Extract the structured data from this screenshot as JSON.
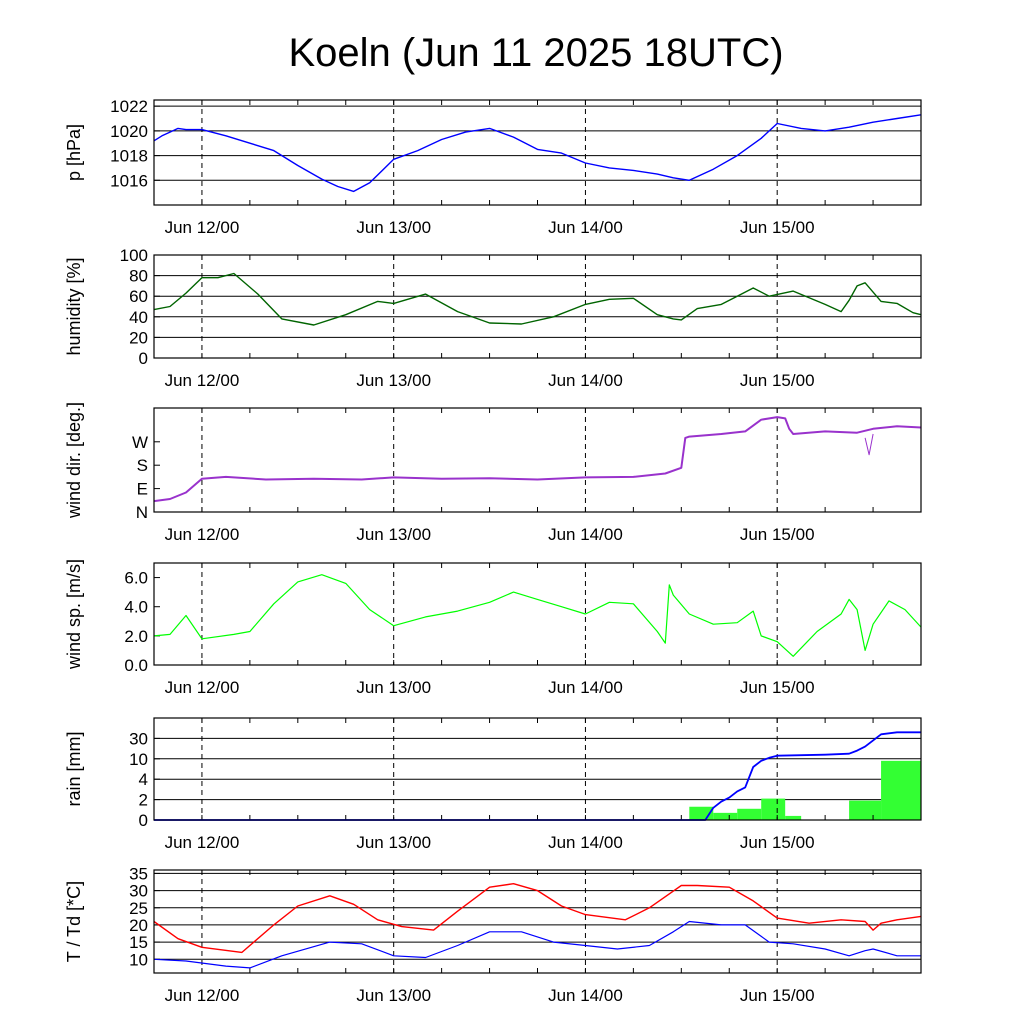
{
  "title": "Koeln (Jun 11 2025 18UTC)",
  "x_axis": {
    "start": "2025-06-11T18:00",
    "end": "2025-06-15T18:00",
    "ticks": [
      {
        "time": "2025-06-12T00:00",
        "label": "Jun 12/00"
      },
      {
        "time": "2025-06-13T00:00",
        "label": "Jun 13/00"
      },
      {
        "time": "2025-06-14T00:00",
        "label": "Jun 14/00"
      },
      {
        "time": "2025-06-15T00:00",
        "label": "Jun 15/00"
      }
    ]
  },
  "chart_data": [
    {
      "type": "line",
      "ylabel": "p [hPa]",
      "ylim": [
        1014,
        1022.5
      ],
      "yticks": [
        {
          "v": 1016,
          "label": "1016"
        },
        {
          "v": 1018,
          "label": "1018"
        },
        {
          "v": 1020,
          "label": "1020"
        },
        {
          "v": 1022,
          "label": "1022"
        }
      ],
      "grid": [
        1016,
        1018,
        1020,
        1022
      ],
      "series": [
        {
          "color": "#0000ff",
          "width": 1.4,
          "x": [
            "2025-06-11T18:00",
            "2025-06-11T19:00",
            "2025-06-11T20:00",
            "2025-06-11T21:00",
            "2025-06-11T22:00",
            "2025-06-12T00:00",
            "2025-06-12T03:00",
            "2025-06-12T06:00",
            "2025-06-12T09:00",
            "2025-06-12T12:00",
            "2025-06-12T15:00",
            "2025-06-12T17:00",
            "2025-06-12T19:00",
            "2025-06-12T21:00",
            "2025-06-13T00:00",
            "2025-06-13T03:00",
            "2025-06-13T06:00",
            "2025-06-13T09:00",
            "2025-06-13T12:00",
            "2025-06-13T15:00",
            "2025-06-13T18:00",
            "2025-06-13T21:00",
            "2025-06-14T00:00",
            "2025-06-14T03:00",
            "2025-06-14T06:00",
            "2025-06-14T09:00",
            "2025-06-14T11:00",
            "2025-06-14T13:00",
            "2025-06-14T16:00",
            "2025-06-14T19:00",
            "2025-06-14T22:00",
            "2025-06-15T00:00",
            "2025-06-15T03:00",
            "2025-06-15T06:00",
            "2025-06-15T09:00",
            "2025-06-15T12:00",
            "2025-06-15T15:00",
            "2025-06-15T18:00"
          ],
          "values": [
            1019.2,
            1019.6,
            1019.9,
            1020.2,
            1020.1,
            1020.1,
            1019.6,
            1019.0,
            1018.4,
            1017.2,
            1016.1,
            1015.5,
            1015.1,
            1015.8,
            1017.7,
            1018.4,
            1019.3,
            1019.9,
            1020.2,
            1019.5,
            1018.5,
            1018.2,
            1017.4,
            1017.0,
            1016.8,
            1016.5,
            1016.2,
            1016.0,
            1016.9,
            1018.0,
            1019.4,
            1020.6,
            1020.2,
            1020.0,
            1020.3,
            1020.7,
            1021.0,
            1021.3
          ]
        }
      ]
    },
    {
      "type": "line",
      "ylabel": "humidity [%]",
      "ylim": [
        0,
        100
      ],
      "yticks": [
        {
          "v": 0,
          "label": "0"
        },
        {
          "v": 20,
          "label": "20"
        },
        {
          "v": 40,
          "label": "40"
        },
        {
          "v": 60,
          "label": "60"
        },
        {
          "v": 80,
          "label": "80"
        },
        {
          "v": 100,
          "label": "100"
        }
      ],
      "grid": [
        20,
        40,
        60,
        80
      ],
      "series": [
        {
          "color": "#006400",
          "width": 1.4,
          "x": [
            "2025-06-11T18:00",
            "2025-06-11T20:00",
            "2025-06-11T22:00",
            "2025-06-12T00:00",
            "2025-06-12T02:00",
            "2025-06-12T04:00",
            "2025-06-12T07:00",
            "2025-06-12T10:00",
            "2025-06-12T14:00",
            "2025-06-12T18:00",
            "2025-06-12T22:00",
            "2025-06-13T00:00",
            "2025-06-13T04:00",
            "2025-06-13T08:00",
            "2025-06-13T12:00",
            "2025-06-13T16:00",
            "2025-06-13T20:00",
            "2025-06-14T00:00",
            "2025-06-14T03:00",
            "2025-06-14T06:00",
            "2025-06-14T09:00",
            "2025-06-14T11:00",
            "2025-06-14T12:00",
            "2025-06-14T14:00",
            "2025-06-14T17:00",
            "2025-06-14T19:00",
            "2025-06-14T21:00",
            "2025-06-14T23:00",
            "2025-06-15T02:00",
            "2025-06-15T06:00",
            "2025-06-15T08:00",
            "2025-06-15T09:00",
            "2025-06-15T10:00",
            "2025-06-15T11:00",
            "2025-06-15T13:00",
            "2025-06-15T15:00",
            "2025-06-15T17:00",
            "2025-06-15T18:00"
          ],
          "values": [
            47,
            50,
            63,
            78,
            78,
            82,
            62,
            38,
            32,
            42,
            55,
            53,
            62,
            45,
            34,
            33,
            40,
            52,
            57,
            58,
            42,
            38,
            37,
            48,
            52,
            60,
            68,
            60,
            65,
            52,
            45,
            56,
            70,
            73,
            55,
            53,
            44,
            42
          ]
        }
      ]
    },
    {
      "type": "scatter",
      "ylabel": "wind dir. [deg.]",
      "ylim": [
        0,
        400
      ],
      "yticks": [
        {
          "v": 0,
          "label": "N"
        },
        {
          "v": 90,
          "label": "E"
        },
        {
          "v": 180,
          "label": "S"
        },
        {
          "v": 270,
          "label": "W"
        }
      ],
      "grid": [],
      "series": [
        {
          "color": "#9932cc",
          "width": 2.0,
          "x": [
            "2025-06-11T18:00",
            "2025-06-11T20:00",
            "2025-06-11T22:00",
            "2025-06-12T00:00",
            "2025-06-12T03:00",
            "2025-06-12T08:00",
            "2025-06-12T14:00",
            "2025-06-12T20:00",
            "2025-06-13T00:00",
            "2025-06-13T06:00",
            "2025-06-13T12:00",
            "2025-06-13T18:00",
            "2025-06-14T00:00",
            "2025-06-14T06:00",
            "2025-06-14T10:00",
            "2025-06-14T12:00",
            "2025-06-14T12:30",
            "2025-06-14T13:00",
            "2025-06-14T17:00",
            "2025-06-14T20:00",
            "2025-06-14T22:00",
            "2025-06-15T00:00",
            "2025-06-15T01:00",
            "2025-06-15T01:30",
            "2025-06-15T02:00",
            "2025-06-15T06:00",
            "2025-06-15T10:00",
            "2025-06-15T12:00",
            "2025-06-15T15:00",
            "2025-06-15T18:00"
          ],
          "values": [
            42,
            50,
            75,
            128,
            135,
            125,
            128,
            125,
            133,
            128,
            130,
            125,
            133,
            135,
            148,
            170,
            285,
            290,
            300,
            310,
            355,
            365,
            360,
            320,
            300,
            310,
            305,
            320,
            330,
            325
          ]
        },
        {
          "color": "#9932cc",
          "width": 1.0,
          "x": [
            "2025-06-15T11:00",
            "2025-06-15T11:30",
            "2025-06-15T12:00"
          ],
          "values": [
            285,
            220,
            300
          ]
        }
      ]
    },
    {
      "type": "line",
      "ylabel": "wind sp. [m/s]",
      "ylim": [
        0,
        7
      ],
      "yticks": [
        {
          "v": 0,
          "label": "0.0"
        },
        {
          "v": 2,
          "label": "2.0"
        },
        {
          "v": 4,
          "label": "4.0"
        },
        {
          "v": 6,
          "label": "6.0"
        }
      ],
      "grid": [],
      "series": [
        {
          "color": "#00ff00",
          "width": 1.2,
          "x": [
            "2025-06-11T18:00",
            "2025-06-11T20:00",
            "2025-06-11T22:00",
            "2025-06-12T00:00",
            "2025-06-12T04:00",
            "2025-06-12T06:00",
            "2025-06-12T09:00",
            "2025-06-12T12:00",
            "2025-06-12T15:00",
            "2025-06-12T18:00",
            "2025-06-12T21:00",
            "2025-06-13T00:00",
            "2025-06-13T04:00",
            "2025-06-13T08:00",
            "2025-06-13T12:00",
            "2025-06-13T15:00",
            "2025-06-13T18:00",
            "2025-06-13T21:00",
            "2025-06-14T00:00",
            "2025-06-14T03:00",
            "2025-06-14T06:00",
            "2025-06-14T09:00",
            "2025-06-14T10:00",
            "2025-06-14T10:30",
            "2025-06-14T11:00",
            "2025-06-14T13:00",
            "2025-06-14T16:00",
            "2025-06-14T19:00",
            "2025-06-14T21:00",
            "2025-06-14T22:00",
            "2025-06-15T00:00",
            "2025-06-15T02:00",
            "2025-06-15T05:00",
            "2025-06-15T08:00",
            "2025-06-15T09:00",
            "2025-06-15T10:00",
            "2025-06-15T11:00",
            "2025-06-15T12:00",
            "2025-06-15T14:00",
            "2025-06-15T16:00",
            "2025-06-15T18:00"
          ],
          "values": [
            2.0,
            2.1,
            3.4,
            1.8,
            2.1,
            2.3,
            4.2,
            5.7,
            6.2,
            5.6,
            3.8,
            2.7,
            3.3,
            3.7,
            4.3,
            5.0,
            4.5,
            4.0,
            3.5,
            4.3,
            4.2,
            2.3,
            1.5,
            5.5,
            4.8,
            3.5,
            2.8,
            2.9,
            3.7,
            2.0,
            1.6,
            0.6,
            2.3,
            3.5,
            4.5,
            3.8,
            1.0,
            2.8,
            4.4,
            3.8,
            2.6
          ]
        }
      ]
    },
    {
      "type": "bar",
      "ylabel": "rain [mm]",
      "ylim": [
        0,
        5
      ],
      "yticks": [
        {
          "v": 0,
          "label": "0"
        },
        {
          "v": 1,
          "label": "2"
        },
        {
          "v": 2,
          "label": "4"
        },
        {
          "v": 3,
          "label": "10"
        },
        {
          "v": 4,
          "label": "30"
        }
      ],
      "grid": [
        1,
        2,
        3,
        4
      ],
      "bars": {
        "color": "#33ff33",
        "segments": [
          {
            "start": "2025-06-14T13:00",
            "end": "2025-06-14T16:00",
            "value": 0.65
          },
          {
            "start": "2025-06-14T16:00",
            "end": "2025-06-14T19:00",
            "value": 0.35
          },
          {
            "start": "2025-06-14T19:00",
            "end": "2025-06-14T22:00",
            "value": 0.55
          },
          {
            "start": "2025-06-14T22:00",
            "end": "2025-06-15T01:00",
            "value": 1.05
          },
          {
            "start": "2025-06-15T01:00",
            "end": "2025-06-15T03:00",
            "value": 0.2
          },
          {
            "start": "2025-06-15T09:00",
            "end": "2025-06-15T13:00",
            "value": 0.95
          },
          {
            "start": "2025-06-15T13:00",
            "end": "2025-06-15T18:00",
            "value": 2.9
          }
        ]
      },
      "series": [
        {
          "color": "#0000ff",
          "width": 1.8,
          "x": [
            "2025-06-11T18:00",
            "2025-06-14T15:00",
            "2025-06-14T16:00",
            "2025-06-14T17:00",
            "2025-06-14T18:00",
            "2025-06-14T19:00",
            "2025-06-14T20:00",
            "2025-06-14T21:00",
            "2025-06-14T22:00",
            "2025-06-14T23:00",
            "2025-06-15T00:00",
            "2025-06-15T06:00",
            "2025-06-15T09:00",
            "2025-06-15T10:00",
            "2025-06-15T11:00",
            "2025-06-15T12:00",
            "2025-06-15T13:00",
            "2025-06-15T15:00",
            "2025-06-15T18:00"
          ],
          "values": [
            0,
            0,
            0.6,
            0.9,
            1.1,
            1.4,
            1.6,
            2.6,
            2.9,
            3.05,
            3.15,
            3.2,
            3.25,
            3.4,
            3.6,
            3.9,
            4.2,
            4.3,
            4.3
          ]
        }
      ]
    },
    {
      "type": "line",
      "ylabel": "T / Td [*C]",
      "ylim": [
        6,
        36
      ],
      "yticks": [
        {
          "v": 10,
          "label": "10"
        },
        {
          "v": 15,
          "label": "15"
        },
        {
          "v": 20,
          "label": "20"
        },
        {
          "v": 25,
          "label": "25"
        },
        {
          "v": 30,
          "label": "30"
        },
        {
          "v": 35,
          "label": "35"
        }
      ],
      "grid": [
        10,
        15,
        20,
        25,
        30,
        35
      ],
      "series": [
        {
          "color": "#ff0000",
          "width": 1.4,
          "x": [
            "2025-06-11T18:00",
            "2025-06-11T21:00",
            "2025-06-12T00:00",
            "2025-06-12T05:00",
            "2025-06-12T09:00",
            "2025-06-12T12:00",
            "2025-06-12T16:00",
            "2025-06-12T19:00",
            "2025-06-12T22:00",
            "2025-06-13T01:00",
            "2025-06-13T05:00",
            "2025-06-13T08:00",
            "2025-06-13T12:00",
            "2025-06-13T15:00",
            "2025-06-13T18:00",
            "2025-06-13T21:00",
            "2025-06-14T00:00",
            "2025-06-14T05:00",
            "2025-06-14T08:00",
            "2025-06-14T12:00",
            "2025-06-14T14:00",
            "2025-06-14T18:00",
            "2025-06-14T21:00",
            "2025-06-15T00:00",
            "2025-06-15T04:00",
            "2025-06-15T08:00",
            "2025-06-15T11:00",
            "2025-06-15T12:00",
            "2025-06-15T13:00",
            "2025-06-15T15:00",
            "2025-06-15T18:00"
          ],
          "values": [
            21,
            16,
            13.5,
            12,
            20,
            25.5,
            28.5,
            26,
            21.5,
            19.5,
            18.5,
            24,
            31,
            32,
            30,
            25.5,
            23,
            21.5,
            25,
            31.5,
            31.5,
            31,
            27,
            22,
            20.5,
            21.5,
            21,
            18.5,
            20.5,
            21.5,
            22.5
          ]
        },
        {
          "color": "#0000ff",
          "width": 1.2,
          "x": [
            "2025-06-11T18:00",
            "2025-06-11T22:00",
            "2025-06-12T03:00",
            "2025-06-12T06:00",
            "2025-06-12T10:00",
            "2025-06-12T16:00",
            "2025-06-12T20:00",
            "2025-06-13T00:00",
            "2025-06-13T04:00",
            "2025-06-13T08:00",
            "2025-06-13T12:00",
            "2025-06-13T16:00",
            "2025-06-13T20:00",
            "2025-06-14T00:00",
            "2025-06-14T04:00",
            "2025-06-14T08:00",
            "2025-06-14T11:00",
            "2025-06-14T13:00",
            "2025-06-14T17:00",
            "2025-06-14T20:00",
            "2025-06-14T23:00",
            "2025-06-15T02:00",
            "2025-06-15T06:00",
            "2025-06-15T09:00",
            "2025-06-15T11:00",
            "2025-06-15T12:00",
            "2025-06-15T15:00",
            "2025-06-15T18:00"
          ],
          "values": [
            10,
            9.5,
            8,
            7.5,
            11,
            15,
            14.5,
            11,
            10.5,
            14,
            18,
            18,
            15,
            14,
            13,
            14,
            18,
            21,
            20,
            20,
            15,
            14.5,
            13,
            11,
            12.5,
            13,
            11,
            11
          ]
        }
      ]
    }
  ]
}
